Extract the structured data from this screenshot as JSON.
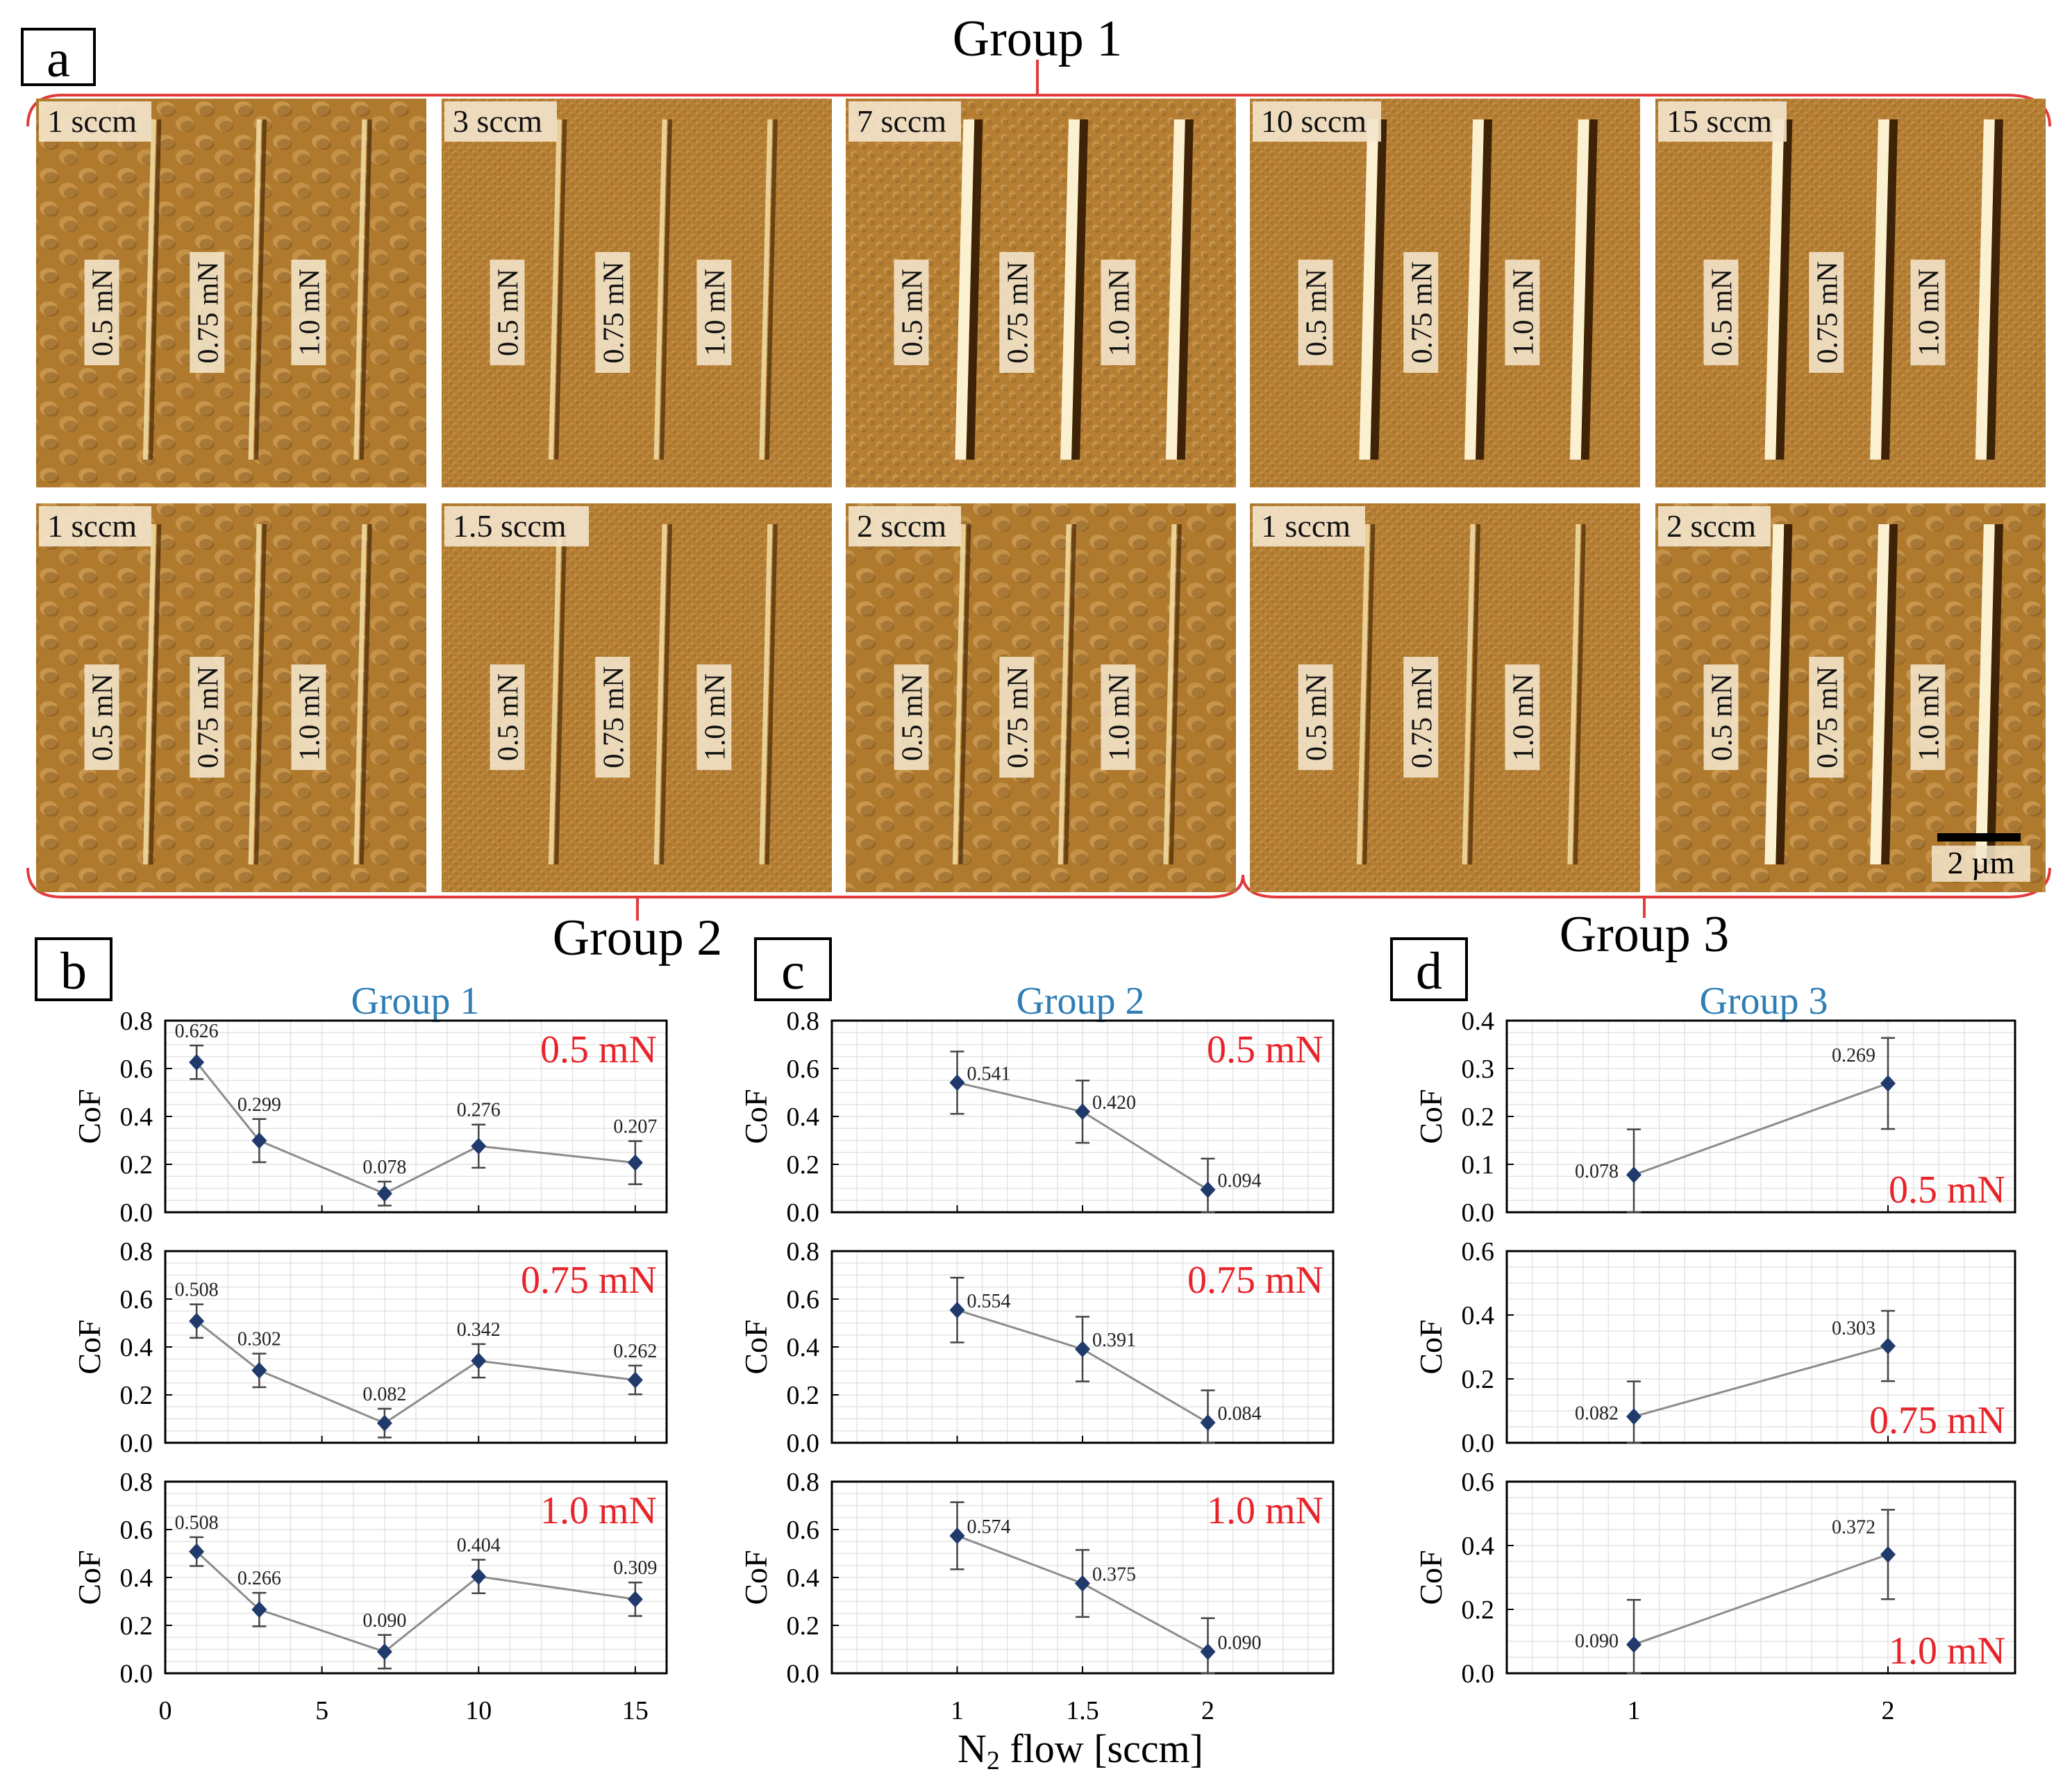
{
  "panel_letters": [
    "a",
    "b",
    "c",
    "d"
  ],
  "group_headers": [
    "Group 1",
    "Group 2",
    "Group 3"
  ],
  "afm_panels": [
    {
      "flow": "1 sccm",
      "loads": [
        "0.5 mN",
        "0.75 mN",
        "1.0 mN"
      ]
    },
    {
      "flow": "3 sccm",
      "loads": [
        "0.5 mN",
        "0.75 mN",
        "1.0 mN"
      ]
    },
    {
      "flow": "7 sccm",
      "loads": [
        "0.5 mN",
        "0.75 mN",
        "1.0 mN"
      ]
    },
    {
      "flow": "10 sccm",
      "loads": [
        "0.5 mN",
        "0.75 mN",
        "1.0 mN"
      ]
    },
    {
      "flow": "15 sccm",
      "loads": [
        "0.5 mN",
        "0.75 mN",
        "1.0 mN"
      ]
    },
    {
      "flow": "1 sccm",
      "loads": [
        "0.5 mN",
        "0.75 mN",
        "1.0 mN"
      ]
    },
    {
      "flow": "1.5 sccm",
      "loads": [
        "0.5 mN",
        "0.75 mN",
        "1.0 mN"
      ]
    },
    {
      "flow": "2 sccm",
      "loads": [
        "0.5 mN",
        "0.75 mN",
        "1.0 mN"
      ]
    },
    {
      "flow": "1 sccm",
      "loads": [
        "0.5 mN",
        "0.75 mN",
        "1.0 mN"
      ]
    },
    {
      "flow": "2 sccm",
      "loads": [
        "0.5 mN",
        "0.75 mN",
        "1.0 mN"
      ]
    }
  ],
  "scale_bar_label": "2 µm",
  "x_axis_label": "N",
  "x_axis_subscript": "2",
  "x_axis_label_rest": " flow [sccm]",
  "colors": {
    "group_title": "#2E7DB5",
    "load_label": "#E8242A",
    "marker": "#1F3A6B",
    "line": "#8C8C8C",
    "bracket": "#E23B3B",
    "afm_base": "#B07A2A"
  },
  "chart_data": [
    {
      "type": "line",
      "title": "Group 1",
      "load": "0.5 mN",
      "x": [
        1,
        3,
        7,
        10,
        15
      ],
      "values": [
        0.626,
        0.299,
        0.078,
        0.276,
        0.207
      ],
      "labels": [
        "0.626",
        "0.299",
        "0.078",
        "0.276",
        "0.207"
      ],
      "errors": [
        0.07,
        0.09,
        0.05,
        0.09,
        0.09
      ],
      "ylabel": "CoF",
      "ylim": [
        0,
        0.8
      ],
      "yticks": [
        "0.0",
        "0.2",
        "0.4",
        "0.6",
        "0.8"
      ],
      "xlim": [
        0,
        16
      ],
      "xticks": [
        "0",
        "5",
        "10",
        "15"
      ]
    },
    {
      "type": "line",
      "title": "Group 1",
      "load": "0.75 mN",
      "x": [
        1,
        3,
        7,
        10,
        15
      ],
      "values": [
        0.508,
        0.302,
        0.082,
        0.342,
        0.262
      ],
      "labels": [
        "0.508",
        "0.302",
        "0.082",
        "0.342",
        "0.262"
      ],
      "errors": [
        0.07,
        0.07,
        0.06,
        0.07,
        0.06
      ],
      "ylabel": "CoF",
      "ylim": [
        0,
        0.8
      ],
      "yticks": [
        "0.0",
        "0.2",
        "0.4",
        "0.6",
        "0.8"
      ],
      "xlim": [
        0,
        16
      ],
      "xticks": [
        "0",
        "5",
        "10",
        "15"
      ]
    },
    {
      "type": "line",
      "title": "Group 1",
      "load": "1.0 mN",
      "x": [
        1,
        3,
        7,
        10,
        15
      ],
      "values": [
        0.508,
        0.266,
        0.09,
        0.404,
        0.309
      ],
      "labels": [
        "0.508",
        "0.266",
        "0.090",
        "0.404",
        "0.309"
      ],
      "errors": [
        0.06,
        0.07,
        0.07,
        0.07,
        0.07
      ],
      "ylabel": "CoF",
      "ylim": [
        0,
        0.8
      ],
      "yticks": [
        "0.0",
        "0.2",
        "0.4",
        "0.6",
        "0.8"
      ],
      "xlim": [
        0,
        16
      ],
      "xticks": [
        "0",
        "5",
        "10",
        "15"
      ]
    },
    {
      "type": "line",
      "title": "Group 2",
      "load": "0.5 mN",
      "x": [
        1,
        1.5,
        2
      ],
      "values": [
        0.541,
        0.42,
        0.094
      ],
      "labels": [
        "0.541",
        "0.420",
        "0.094"
      ],
      "errors": [
        0.13,
        0.13,
        0.13
      ],
      "ylabel": "CoF",
      "ylim": [
        0,
        0.8
      ],
      "yticks": [
        "0.0",
        "0.2",
        "0.4",
        "0.6",
        "0.8"
      ],
      "xlim": [
        0.5,
        2.5
      ],
      "xticks": [
        "1",
        "1.5",
        "2"
      ]
    },
    {
      "type": "line",
      "title": "Group 2",
      "load": "0.75 mN",
      "x": [
        1,
        1.5,
        2
      ],
      "values": [
        0.554,
        0.391,
        0.084
      ],
      "labels": [
        "0.554",
        "0.391",
        "0.084"
      ],
      "errors": [
        0.135,
        0.135,
        0.135
      ],
      "ylabel": "CoF",
      "ylim": [
        0,
        0.8
      ],
      "yticks": [
        "0.0",
        "0.2",
        "0.4",
        "0.6",
        "0.8"
      ],
      "xlim": [
        0.5,
        2.5
      ],
      "xticks": [
        "1",
        "1.5",
        "2"
      ]
    },
    {
      "type": "line",
      "title": "Group 2",
      "load": "1.0 mN",
      "x": [
        1,
        1.5,
        2
      ],
      "values": [
        0.574,
        0.375,
        0.09
      ],
      "labels": [
        "0.574",
        "0.375",
        "0.090"
      ],
      "errors": [
        0.14,
        0.14,
        0.14
      ],
      "ylabel": "CoF",
      "ylim": [
        0,
        0.8
      ],
      "yticks": [
        "0.0",
        "0.2",
        "0.4",
        "0.6",
        "0.8"
      ],
      "xlim": [
        0.5,
        2.5
      ],
      "xticks": [
        "1",
        "1.5",
        "2"
      ]
    },
    {
      "type": "line",
      "title": "Group 3",
      "load": "0.5 mN",
      "x": [
        1,
        2
      ],
      "values": [
        0.078,
        0.269
      ],
      "labels": [
        "0.078",
        "0.269"
      ],
      "errors": [
        0.095,
        0.095
      ],
      "ylabel": "CoF",
      "ylim": [
        0,
        0.4
      ],
      "yticks": [
        "0.0",
        "0.1",
        "0.2",
        "0.3",
        "0.4"
      ],
      "xlim": [
        0.5,
        2.5
      ],
      "xticks": [
        "1",
        "2"
      ]
    },
    {
      "type": "line",
      "title": "Group 3",
      "load": "0.75 mN",
      "x": [
        1,
        2
      ],
      "values": [
        0.082,
        0.303
      ],
      "labels": [
        "0.082",
        "0.303"
      ],
      "errors": [
        0.11,
        0.11
      ],
      "ylabel": "CoF",
      "ylim": [
        0,
        0.6
      ],
      "yticks": [
        "0.0",
        "0.2",
        "0.4",
        "0.6"
      ],
      "xlim": [
        0.5,
        2.5
      ],
      "xticks": [
        "1",
        "2"
      ]
    },
    {
      "type": "line",
      "title": "Group 3",
      "load": "1.0 mN",
      "x": [
        1,
        2
      ],
      "values": [
        0.09,
        0.372
      ],
      "labels": [
        "0.090",
        "0.372"
      ],
      "errors": [
        0.14,
        0.14
      ],
      "ylabel": "CoF",
      "ylim": [
        0,
        0.6
      ],
      "yticks": [
        "0.0",
        "0.2",
        "0.4",
        "0.6"
      ],
      "xlim": [
        0.5,
        2.5
      ],
      "xticks": [
        "1",
        "2"
      ]
    }
  ]
}
